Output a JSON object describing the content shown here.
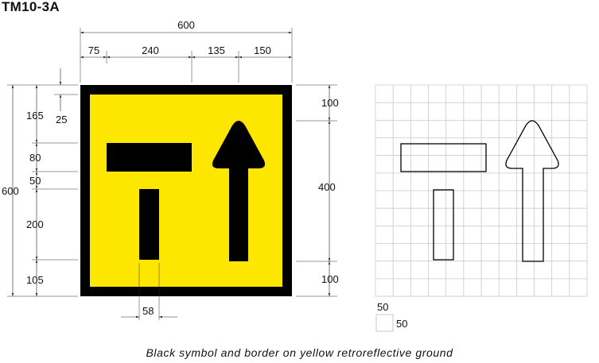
{
  "title": "TM10-3A",
  "caption": "Black symbol and border on yellow retroreflective ground",
  "colors": {
    "yellow": "#fde600",
    "black": "#000000",
    "grid": "#c9c9c9"
  },
  "dims_top": {
    "overall": "600",
    "d1": "75",
    "d2": "240",
    "d3": "135",
    "d4": "150"
  },
  "dims_left": {
    "overall": "600",
    "d1": "165",
    "d2": "25",
    "d3": "80",
    "d4": "50",
    "d5": "200",
    "d6": "105"
  },
  "dims_right": {
    "d1": "100",
    "d2": "400",
    "d3": "100"
  },
  "dims_bottom": {
    "d1": "58"
  },
  "grid_legend": {
    "top": "50",
    "right": "50"
  }
}
